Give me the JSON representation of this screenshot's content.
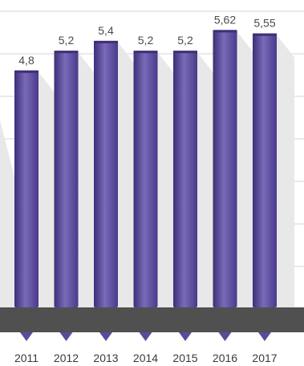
{
  "chart_data": {
    "type": "bar",
    "categories": [
      "2011",
      "2012",
      "2013",
      "2014",
      "2015",
      "2016",
      "2017"
    ],
    "values": [
      4.8,
      5.2,
      5.4,
      5.2,
      5.2,
      5.62,
      5.55
    ],
    "value_labels": [
      "4,8",
      "5,2",
      "5,4",
      "5,2",
      "5,2",
      "5,62",
      "5,55"
    ],
    "title": "",
    "xlabel": "",
    "ylabel": "",
    "ylim": [
      0,
      6
    ],
    "grid": true,
    "colors": {
      "bar": "#5b4a9b",
      "bar_dark": "#3d2f78",
      "bar_light": "#7a6ab8",
      "base_band": "#505050",
      "grid": "#d5d5d5",
      "shadow": "#e8e8e8"
    }
  }
}
